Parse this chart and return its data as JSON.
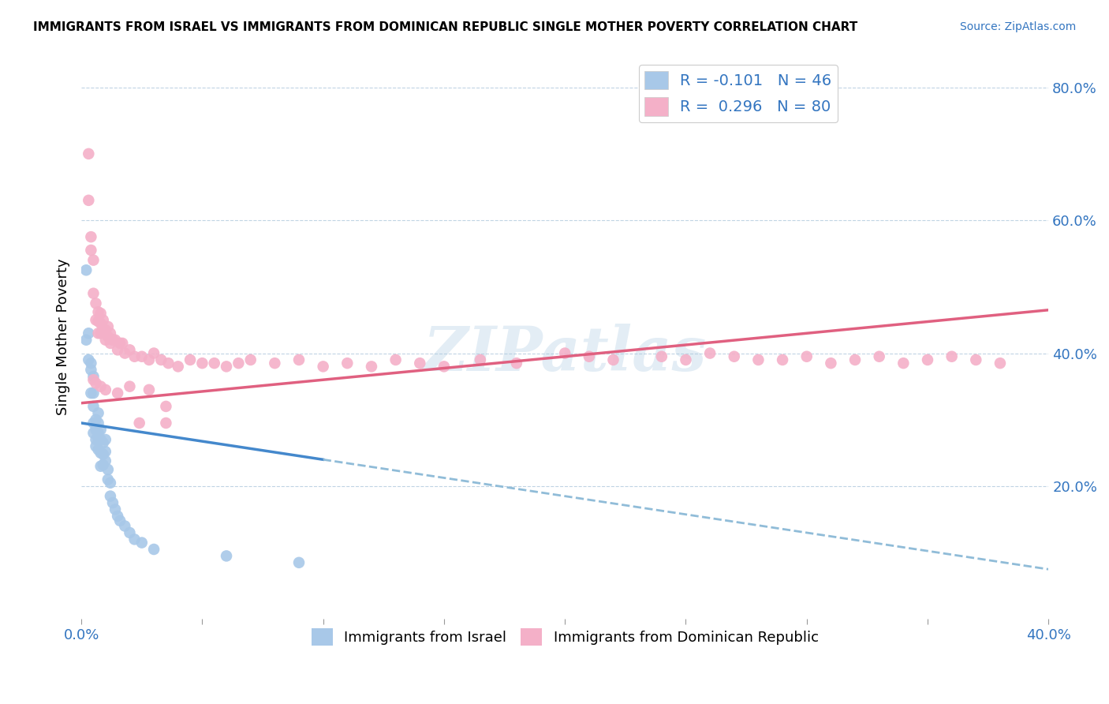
{
  "title": "IMMIGRANTS FROM ISRAEL VS IMMIGRANTS FROM DOMINICAN REPUBLIC SINGLE MOTHER POVERTY CORRELATION CHART",
  "source": "Source: ZipAtlas.com",
  "ylabel": "Single Mother Poverty",
  "color_israel": "#a8c8e8",
  "color_dr": "#f4b0c8",
  "color_israel_line": "#4488cc",
  "color_dr_line": "#e06080",
  "color_dashed": "#90bcd8",
  "watermark": "ZIPatlas",
  "xlim": [
    0.0,
    0.4
  ],
  "ylim": [
    0.0,
    0.85
  ],
  "israel_line_x": [
    0.0,
    0.1
  ],
  "israel_line_y": [
    0.295,
    0.24
  ],
  "dashed_line_x": [
    0.1,
    0.4
  ],
  "dashed_line_y": [
    0.24,
    0.075
  ],
  "dr_line_x": [
    0.0,
    0.4
  ],
  "dr_line_y": [
    0.325,
    0.465
  ],
  "israel_pts_x": [
    0.002,
    0.002,
    0.003,
    0.003,
    0.004,
    0.004,
    0.004,
    0.005,
    0.005,
    0.005,
    0.005,
    0.005,
    0.006,
    0.006,
    0.006,
    0.006,
    0.007,
    0.007,
    0.007,
    0.007,
    0.007,
    0.008,
    0.008,
    0.008,
    0.008,
    0.009,
    0.009,
    0.009,
    0.01,
    0.01,
    0.01,
    0.011,
    0.011,
    0.012,
    0.012,
    0.013,
    0.014,
    0.015,
    0.016,
    0.018,
    0.02,
    0.022,
    0.025,
    0.03,
    0.06,
    0.09
  ],
  "israel_pts_y": [
    0.525,
    0.42,
    0.43,
    0.39,
    0.385,
    0.375,
    0.34,
    0.365,
    0.34,
    0.32,
    0.295,
    0.28,
    0.3,
    0.285,
    0.27,
    0.26,
    0.31,
    0.295,
    0.28,
    0.27,
    0.255,
    0.285,
    0.27,
    0.25,
    0.23,
    0.265,
    0.248,
    0.232,
    0.27,
    0.252,
    0.238,
    0.225,
    0.21,
    0.205,
    0.185,
    0.175,
    0.165,
    0.155,
    0.148,
    0.14,
    0.13,
    0.12,
    0.115,
    0.105,
    0.095,
    0.085
  ],
  "dr_pts_x": [
    0.003,
    0.003,
    0.004,
    0.004,
    0.005,
    0.005,
    0.006,
    0.006,
    0.007,
    0.007,
    0.007,
    0.008,
    0.008,
    0.008,
    0.009,
    0.009,
    0.01,
    0.01,
    0.011,
    0.011,
    0.012,
    0.012,
    0.013,
    0.014,
    0.015,
    0.016,
    0.017,
    0.018,
    0.02,
    0.022,
    0.025,
    0.028,
    0.03,
    0.033,
    0.036,
    0.04,
    0.045,
    0.05,
    0.055,
    0.06,
    0.065,
    0.07,
    0.08,
    0.09,
    0.1,
    0.11,
    0.12,
    0.13,
    0.14,
    0.15,
    0.165,
    0.18,
    0.2,
    0.21,
    0.22,
    0.24,
    0.25,
    0.26,
    0.27,
    0.28,
    0.29,
    0.3,
    0.31,
    0.32,
    0.33,
    0.34,
    0.35,
    0.36,
    0.37,
    0.38,
    0.024,
    0.035,
    0.035,
    0.028,
    0.02,
    0.015,
    0.01,
    0.008,
    0.005,
    0.006
  ],
  "dr_pts_y": [
    0.7,
    0.63,
    0.575,
    0.555,
    0.54,
    0.49,
    0.475,
    0.45,
    0.462,
    0.448,
    0.43,
    0.46,
    0.445,
    0.43,
    0.45,
    0.435,
    0.435,
    0.42,
    0.44,
    0.425,
    0.43,
    0.415,
    0.42,
    0.42,
    0.405,
    0.415,
    0.415,
    0.4,
    0.405,
    0.395,
    0.395,
    0.39,
    0.4,
    0.39,
    0.385,
    0.38,
    0.39,
    0.385,
    0.385,
    0.38,
    0.385,
    0.39,
    0.385,
    0.39,
    0.38,
    0.385,
    0.38,
    0.39,
    0.385,
    0.38,
    0.39,
    0.385,
    0.4,
    0.395,
    0.39,
    0.395,
    0.39,
    0.4,
    0.395,
    0.39,
    0.39,
    0.395,
    0.385,
    0.39,
    0.395,
    0.385,
    0.39,
    0.395,
    0.39,
    0.385,
    0.295,
    0.295,
    0.32,
    0.345,
    0.35,
    0.34,
    0.345,
    0.35,
    0.36,
    0.355
  ]
}
